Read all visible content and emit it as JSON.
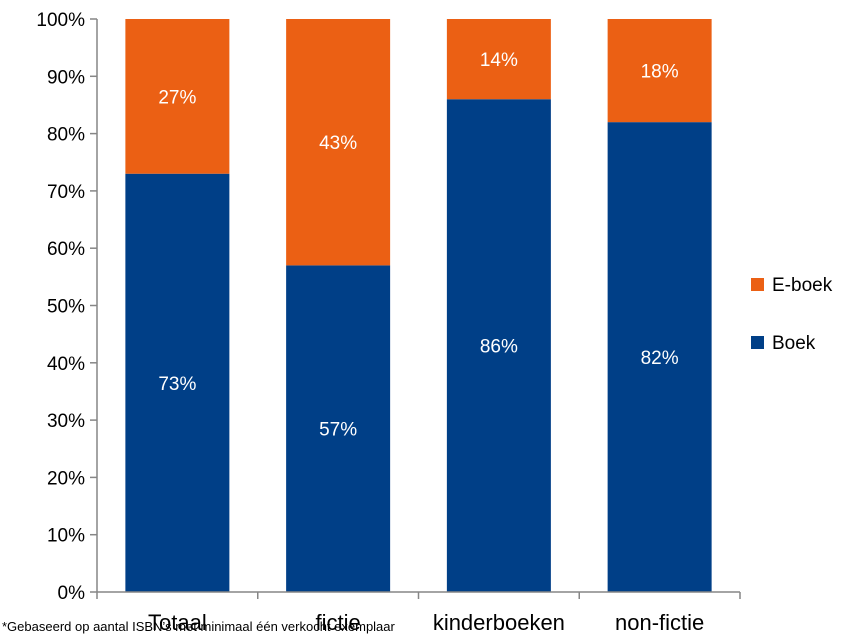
{
  "chart_data": {
    "type": "bar",
    "stacked": true,
    "categories": [
      "Totaal",
      "fictie",
      "kinderboeken",
      "non-fictie"
    ],
    "series": [
      {
        "name": "Boek",
        "values": [
          73,
          57,
          86,
          82
        ],
        "labels": [
          "73%",
          "57%",
          "86%",
          "82%"
        ],
        "color": "#003F87"
      },
      {
        "name": "E-boek",
        "values": [
          27,
          43,
          14,
          18
        ],
        "labels": [
          "27%",
          "43%",
          "14%",
          "18%"
        ],
        "color": "#EB6014"
      }
    ],
    "y_ticks": [
      "0%",
      "10%",
      "20%",
      "30%",
      "40%",
      "50%",
      "60%",
      "70%",
      "80%",
      "90%",
      "100%"
    ],
    "ylim": [
      0,
      100
    ],
    "grid": false,
    "legend_position": "right",
    "footnote": "*Gebaseerd op aantal ISBN’s met minimaal één verkocht exemplaar"
  }
}
